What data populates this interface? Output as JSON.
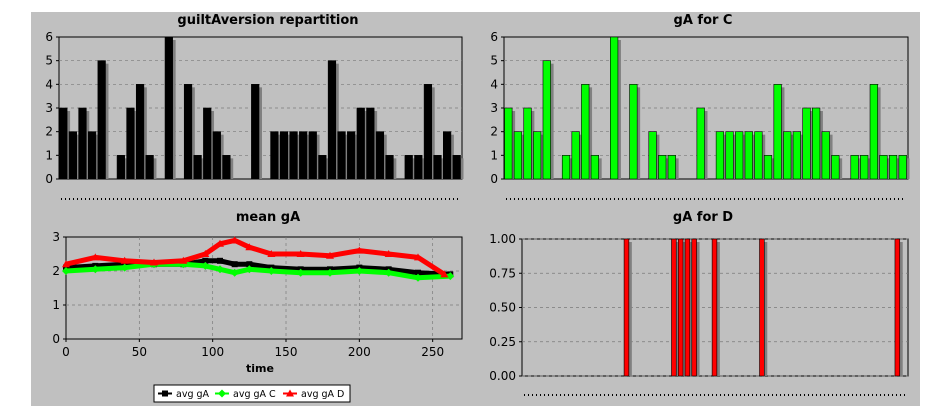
{
  "colors": {
    "panel_bg": "#c0c0c0",
    "bar_black": "#000000",
    "bar_green": "#00ff00",
    "bar_red": "#ff0000",
    "shadow": "#808080",
    "grid": "#7a7a7a"
  },
  "legend": [
    {
      "label": "avg gA",
      "color": "#000000",
      "marker": "square"
    },
    {
      "label": "avg gA C",
      "color": "#00ff00",
      "marker": "diamond"
    },
    {
      "label": "avg gA D",
      "color": "#ff0000",
      "marker": "triangle"
    }
  ],
  "chart_data": [
    {
      "type": "bar",
      "title": "guiltAversion repartition",
      "ylim": [
        0,
        6
      ],
      "yticks": [
        "0",
        "1",
        "2",
        "3",
        "4",
        "5",
        "6"
      ],
      "grid": true,
      "values": [
        3,
        2,
        3,
        2,
        5,
        0,
        1,
        3,
        4,
        1,
        0,
        6,
        0,
        4,
        1,
        3,
        2,
        1,
        0,
        0,
        4,
        0,
        2,
        2,
        2,
        2,
        2,
        1,
        5,
        2,
        2,
        3,
        3,
        2,
        1,
        0,
        1,
        1,
        4,
        1,
        2,
        1
      ]
    },
    {
      "type": "bar",
      "title": "gA for C",
      "ylim": [
        0,
        6
      ],
      "yticks": [
        "0",
        "1",
        "2",
        "3",
        "4",
        "5",
        "6"
      ],
      "grid": true,
      "values": [
        3,
        2,
        3,
        2,
        5,
        0,
        1,
        2,
        4,
        1,
        0,
        6,
        0,
        4,
        0,
        2,
        1,
        1,
        0,
        0,
        3,
        0,
        2,
        2,
        2,
        2,
        2,
        1,
        4,
        2,
        2,
        3,
        3,
        2,
        1,
        0,
        1,
        1,
        4,
        1,
        1,
        1
      ]
    },
    {
      "type": "line",
      "title": "mean gA",
      "xlabel": "time",
      "xlim": [
        0,
        270
      ],
      "ylim": [
        0,
        3
      ],
      "xticks": [
        "0",
        "50",
        "100",
        "150",
        "200",
        "250"
      ],
      "yticks": [
        "0",
        "1",
        "2",
        "3"
      ],
      "grid": true,
      "legend_position": "bottom",
      "series": [
        {
          "name": "avg gA",
          "color": "#000000",
          "x": [
            0,
            20,
            40,
            60,
            80,
            95,
            105,
            115,
            125,
            140,
            160,
            180,
            200,
            220,
            240,
            262
          ],
          "y": [
            2.1,
            2.15,
            2.2,
            2.2,
            2.2,
            2.3,
            2.3,
            2.2,
            2.2,
            2.1,
            2.05,
            2.05,
            2.1,
            2.05,
            1.95,
            1.9
          ]
        },
        {
          "name": "avg gA C",
          "color": "#00ff00",
          "x": [
            0,
            20,
            40,
            60,
            80,
            95,
            105,
            115,
            125,
            140,
            160,
            180,
            200,
            220,
            240,
            262
          ],
          "y": [
            2.0,
            2.05,
            2.1,
            2.2,
            2.2,
            2.15,
            2.05,
            1.95,
            2.05,
            2.0,
            1.95,
            1.95,
            2.0,
            1.95,
            1.8,
            1.85
          ]
        },
        {
          "name": "avg gA D",
          "color": "#ff0000",
          "x": [
            0,
            20,
            40,
            60,
            80,
            95,
            105,
            115,
            125,
            140,
            160,
            180,
            200,
            220,
            240,
            258
          ],
          "y": [
            2.2,
            2.4,
            2.3,
            2.25,
            2.3,
            2.5,
            2.8,
            2.9,
            2.7,
            2.5,
            2.5,
            2.45,
            2.6,
            2.5,
            2.4,
            1.9
          ]
        }
      ]
    },
    {
      "type": "bar",
      "title": "gA for D",
      "ylim": [
        0,
        1
      ],
      "yticks": [
        "0.00",
        "0.25",
        "0.50",
        "0.75",
        "1.00"
      ],
      "grid": true,
      "values": [
        0,
        0,
        0,
        0,
        0,
        0,
        0,
        0,
        0,
        0,
        0,
        0,
        0,
        0,
        0,
        1,
        0,
        0,
        0,
        0,
        0,
        0,
        1,
        1,
        1,
        1,
        0,
        0,
        1,
        0,
        0,
        0,
        0,
        0,
        0,
        1,
        0,
        0,
        0,
        0,
        0,
        0,
        0,
        0,
        0,
        0,
        0,
        0,
        0,
        0,
        0,
        0,
        0,
        0,
        0,
        1,
        0
      ]
    }
  ]
}
